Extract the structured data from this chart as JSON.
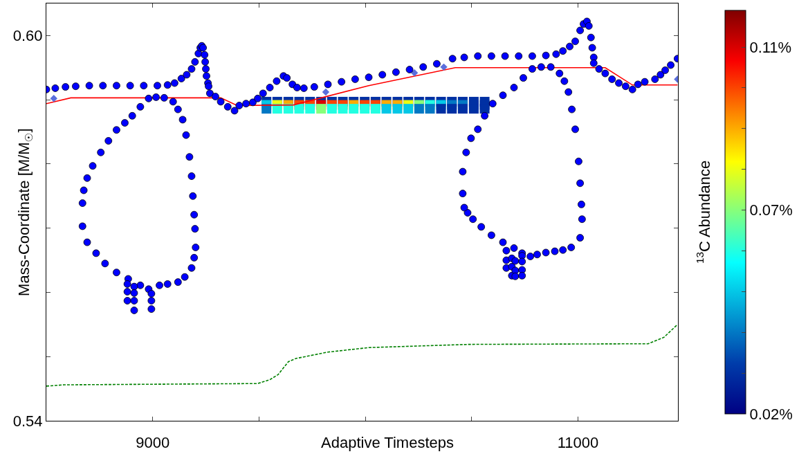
{
  "chart_data": {
    "type": "scatter",
    "xlabel": "Adaptive Timesteps",
    "ylabel": "Mass-Coordinate [M/M$_{☉}$]",
    "clabel": "$^{13}$C Abundance",
    "xlim": [
      8500,
      11470
    ],
    "xticks": [
      9000,
      {
        "value": 9500,
        "label": null
      },
      {
        "value": 10000,
        "label": null
      },
      {
        "value": 10500,
        "label": null
      },
      11000
    ],
    "ylim": [
      0.54,
      0.605
    ],
    "yticks": [
      {
        "value": 0.54,
        "label": "0.54"
      },
      {
        "value": 0.55,
        "label": null
      },
      {
        "value": 0.56,
        "label": null
      },
      {
        "value": 0.57,
        "label": null
      },
      {
        "value": 0.58,
        "label": null
      },
      {
        "value": 0.59,
        "label": null
      },
      {
        "value": 0.6,
        "label": "0.60"
      }
    ],
    "clim": [
      0.02,
      0.119
    ],
    "cticks": [
      {
        "value": 0.02,
        "label": "0.02%"
      },
      {
        "value": 0.03,
        "label": null
      },
      {
        "value": 0.04,
        "label": null
      },
      {
        "value": 0.05,
        "label": null
      },
      {
        "value": 0.06,
        "label": null
      },
      {
        "value": 0.07,
        "label": "0.07%"
      },
      {
        "value": 0.08,
        "label": null
      },
      {
        "value": 0.09,
        "label": null
      },
      {
        "value": 0.1,
        "label": null
      },
      {
        "value": 0.11,
        "label": "0.11%"
      }
    ],
    "series": [
      {
        "type": "scatter",
        "marker": "square",
        "x": [
          9535,
          9586,
          9638,
          9689,
          9740,
          9792,
          9843,
          9894,
          9945,
          9997,
          10048,
          10099,
          10151,
          10202,
          10253,
          10304,
          10356,
          10407,
          10458,
          10510,
          10561,
          9535,
          9586,
          9638,
          9689,
          9740,
          9792,
          9843,
          9894,
          9945,
          9997,
          10048,
          10099,
          10151,
          10202,
          10253,
          10304,
          10356,
          10407,
          10458,
          10510,
          10561,
          9535,
          9586,
          9638,
          9689,
          9740,
          9792,
          9843,
          9894,
          9945,
          9997,
          10048,
          10099,
          10151,
          10202,
          10253,
          10304,
          10356,
          10407,
          10458,
          10510,
          10561
        ],
        "values": [
          0.5897,
          0.5897,
          0.5897,
          0.5897,
          0.5897,
          0.5897,
          0.5897,
          0.5897,
          0.5897,
          0.5897,
          0.5897,
          0.5897,
          0.5897,
          0.5897,
          0.5897,
          0.5897,
          0.5897,
          0.5897,
          0.5897,
          0.5897,
          0.5897,
          0.5892,
          0.5892,
          0.5892,
          0.5892,
          0.5892,
          0.5892,
          0.5892,
          0.5892,
          0.5892,
          0.5892,
          0.5892,
          0.5892,
          0.5892,
          0.5892,
          0.5892,
          0.5892,
          0.5892,
          0.5892,
          0.5892,
          0.5892,
          0.5892,
          0.5886,
          0.5886,
          0.5886,
          0.5886,
          0.5886,
          0.5886,
          0.5886,
          0.5886,
          0.5886,
          0.5886,
          0.5886,
          0.5886,
          0.5886,
          0.5886,
          0.5886,
          0.5886,
          0.5886,
          0.5886,
          0.5886,
          0.5886,
          0.5886
        ],
        "colors": [
          "#0030a3",
          "#0030a3",
          "#0030a3",
          "#0030a3",
          "#0030a3",
          "#0030a3",
          "#0030a3",
          "#0030a3",
          "#0030a3",
          "#0030a3",
          "#0030a3",
          "#0030a3",
          "#0030a3",
          "#0030a3",
          "#0030a3",
          "#0030a3",
          "#0030a3",
          "#0030a3",
          "#0030a3",
          "#0030a3",
          "#0030a3",
          "#04c7e6",
          "#ecff13",
          "#fdab00",
          "#fb4400",
          "#fb4400",
          "#d90000",
          "#fb4400",
          "#fb4400",
          "#fdab00",
          "#fb4400",
          "#fb4400",
          "#fdab00",
          "#fdab00",
          "#ecff13",
          "#87ff7a",
          "#22ffe1",
          "#04c7e6",
          "#0278c4",
          "#0278c4",
          "#0030a3",
          "#0030a3",
          "#0278c4",
          "#22ffe1",
          "#22ffe1",
          "#22ffe1",
          "#22ffe1",
          "#87ff7a",
          "#22ffe1",
          "#22ffe1",
          "#22ffe1",
          "#22ffe1",
          "#22ffe1",
          "#04c7e6",
          "#04c7e6",
          "#04c7e6",
          "#0278c4",
          "#0278c4",
          "#0030a3",
          "#0030a3",
          "#0030a3",
          "#0030a3",
          "#0030a3"
        ]
      },
      {
        "type": "line",
        "color": "#ff0000",
        "line_style": "solid",
        "x": [
          8500,
          8615,
          9320,
          9397,
          9663,
          10016,
          10423,
          11128,
          11256,
          11468
        ],
        "values": [
          0.5894,
          0.5903,
          0.5903,
          0.5891,
          0.5892,
          0.5922,
          0.595,
          0.595,
          0.5923,
          0.5923
        ]
      },
      {
        "type": "line",
        "color": "#008000",
        "line_style": "dashed",
        "x": [
          8500,
          8583,
          9494,
          9551,
          9590,
          9638,
          9673,
          9824,
          10016,
          10487,
          11330,
          11404,
          11468
        ],
        "values": [
          0.5454,
          0.5456,
          0.5458,
          0.5464,
          0.5472,
          0.5492,
          0.5497,
          0.5507,
          0.5514,
          0.5519,
          0.552,
          0.553,
          0.555
        ]
      },
      {
        "type": "scatter",
        "marker": "diamond",
        "color": "#5b6fdc",
        "x": [
          8535,
          9814,
          10231,
          10369,
          11468
        ],
        "values": [
          0.5902,
          0.5912,
          0.5942,
          0.5951,
          0.5932
        ]
      },
      {
        "type": "scatter",
        "marker": "circle",
        "color": "#0000ff",
        "x": [
          8500,
          8542,
          8590,
          8638,
          8702,
          8766,
          8830,
          8894,
          8958,
          9022,
          9070,
          9103,
          9135,
          9160,
          9183,
          9199,
          9215,
          9224,
          9231,
          9237,
          9244,
          9247,
          9250,
          9253,
          9260,
          9263,
          9269,
          9295,
          9320,
          9353,
          9385,
          9407,
          9439,
          9471,
          9494,
          9519,
          9551,
          9583,
          9615,
          9631,
          9657,
          9679,
          9711,
          9760,
          9824,
          9888,
          9952,
          10016,
          10080,
          10144,
          10208,
          10272,
          10336,
          10410,
          10465,
          10529,
          10593,
          10657,
          10721,
          10785,
          10849,
          10897,
          10929,
          10961,
          10987,
          11010,
          11026,
          11042,
          11051,
          11061,
          11067,
          11074,
          11074,
          11099,
          11128,
          11160,
          11192,
          11224,
          11256,
          11282,
          11314,
          11362,
          11388,
          11410,
          11436,
          11468
        ],
        "values": [
          0.5916,
          0.5918,
          0.592,
          0.5921,
          0.5922,
          0.5922,
          0.5922,
          0.5922,
          0.5922,
          0.5922,
          0.5923,
          0.5926,
          0.5933,
          0.5939,
          0.5948,
          0.5959,
          0.5972,
          0.5981,
          0.5984,
          0.5981,
          0.597,
          0.5959,
          0.5948,
          0.5937,
          0.5926,
          0.5921,
          0.591,
          0.5905,
          0.5897,
          0.5889,
          0.5883,
          0.5891,
          0.5894,
          0.5896,
          0.5902,
          0.591,
          0.5919,
          0.5929,
          0.5937,
          0.5934,
          0.5924,
          0.5919,
          0.5918,
          0.592,
          0.5924,
          0.5928,
          0.5932,
          0.5935,
          0.5939,
          0.5943,
          0.5947,
          0.5951,
          0.5956,
          0.5964,
          0.5966,
          0.5968,
          0.5968,
          0.5968,
          0.5968,
          0.5968,
          0.5969,
          0.5971,
          0.5976,
          0.5983,
          0.5991,
          0.6008,
          0.6018,
          0.6022,
          0.6015,
          0.5997,
          0.5981,
          0.5966,
          0.5957,
          0.5948,
          0.5941,
          0.5932,
          0.5926,
          0.5921,
          0.5916,
          0.5924,
          0.5928,
          0.5932,
          0.5939,
          0.5946,
          0.5954,
          0.5964
        ]
      },
      {
        "type": "scatter",
        "marker": "circle",
        "color": "#0000ff",
        "x": [
          8670,
          8676,
          8692,
          8718,
          8756,
          8792,
          8830,
          8869,
          8904,
          8942,
          8981,
          9016,
          9054,
          9096,
          9119,
          9141,
          9157,
          9173,
          9183,
          9189,
          9195,
          9199,
          9202,
          9195,
          9183,
          9151,
          9119,
          9070,
          9032,
          8981,
          8942,
          8885,
          8830,
          8776,
          8734,
          8692,
          8670
        ],
        "values": [
          0.5739,
          0.5759,
          0.5778,
          0.5797,
          0.5818,
          0.5836,
          0.5853,
          0.5864,
          0.5875,
          0.5889,
          0.5902,
          0.5904,
          0.5903,
          0.5897,
          0.5885,
          0.5869,
          0.5845,
          0.5811,
          0.5781,
          0.575,
          0.5721,
          0.5699,
          0.567,
          0.5654,
          0.5638,
          0.5624,
          0.5616,
          0.5613,
          0.5611,
          0.5605,
          0.5611,
          0.5621,
          0.5631,
          0.5645,
          0.5661,
          0.5678,
          0.5703
        ]
      },
      {
        "type": "scatter",
        "marker": "circle",
        "color": "#0000ff",
        "x": [
          8881,
          8881,
          8881,
          8913,
          8913,
          8913,
          8913,
          8994,
          8994,
          8994
        ],
        "values": [
          0.5613,
          0.5601,
          0.5587,
          0.5609,
          0.5599,
          0.5587,
          0.5572,
          0.5598,
          0.5587,
          0.5574
        ]
      },
      {
        "type": "scatter",
        "marker": "circle",
        "color": "#0000ff",
        "x": [
          10458,
          10458,
          10474,
          10497,
          10529,
          10561,
          10599,
          10647,
          10699,
          10743,
          10785,
          10827,
          10872,
          10913,
          10936,
          10955,
          10971,
          10987,
          11003,
          11010,
          11016,
          11019,
          11010,
          10968,
          10929,
          10891,
          10849,
          10808,
          10776,
          10737,
          10699,
          10647,
          10593,
          10545,
          10506,
          10481,
          10465
        ],
        "values": [
          0.5754,
          0.5788,
          0.5818,
          0.584,
          0.5854,
          0.5875,
          0.5894,
          0.5907,
          0.5919,
          0.5934,
          0.5948,
          0.5951,
          0.5951,
          0.5941,
          0.5929,
          0.5912,
          0.5885,
          0.5854,
          0.5804,
          0.577,
          0.5737,
          0.5714,
          0.5685,
          0.567,
          0.5666,
          0.5664,
          0.5662,
          0.5659,
          0.5656,
          0.5661,
          0.5669,
          0.5678,
          0.5689,
          0.5702,
          0.5714,
          0.5724,
          0.5732
        ]
      },
      {
        "type": "scatter",
        "marker": "circle",
        "color": "#0000ff",
        "x": [
          10663,
          10663,
          10663,
          10689,
          10689,
          10689,
          10705,
          10705,
          10705,
          10737,
          10737,
          10737,
          10737
        ],
        "values": [
          0.5665,
          0.565,
          0.5638,
          0.5653,
          0.564,
          0.5626,
          0.5649,
          0.5634,
          0.5625,
          0.5657,
          0.5648,
          0.5635,
          0.5626
        ]
      }
    ]
  }
}
